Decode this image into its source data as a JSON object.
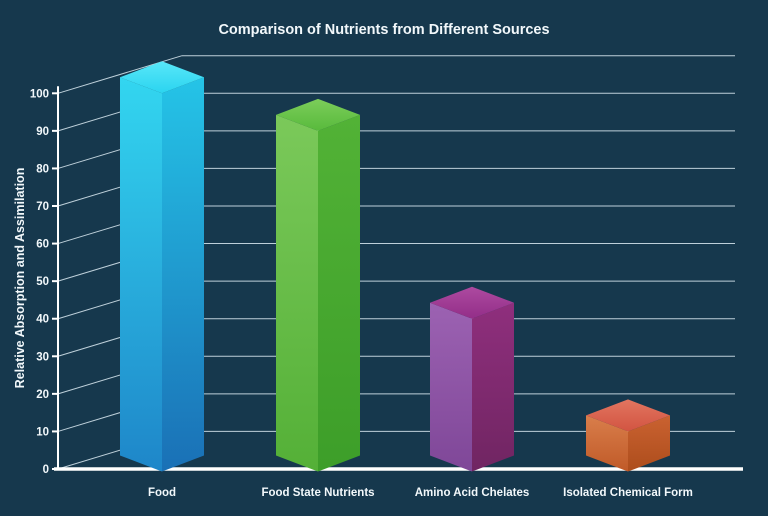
{
  "colors": {
    "background": "#16384d",
    "grid": "#dcebf3",
    "axis": "#ffffff",
    "text": "#f2f8fb"
  },
  "chart_data": {
    "type": "bar",
    "projection": "3d-oblique",
    "title": "Comparison of Nutrients from Different Sources",
    "xlabel": "",
    "ylabel": "Relative Absorption and Assimilation",
    "categories": [
      "Food",
      "Food State Nutrients",
      "Amino Acid Chelates",
      "Isolated Chemical Form"
    ],
    "values": [
      100,
      90,
      40,
      10
    ],
    "ylim": [
      0,
      100
    ],
    "ytick_step": 10,
    "ytick_labels": [
      "0",
      "10",
      "20",
      "30",
      "40",
      "50",
      "60",
      "70",
      "80",
      "90",
      "100"
    ],
    "grid": true,
    "legend": false,
    "bar_colors": [
      {
        "name": "cyan-blue",
        "top1": "#58e7f8",
        "top2": "#2bd4f0",
        "left1": "#33d6f0",
        "left2": "#1e86c9",
        "right1": "#25c4e7",
        "right2": "#1a70b6"
      },
      {
        "name": "green",
        "top1": "#7ccd5a",
        "top2": "#58ba3c",
        "left1": "#7bc95a",
        "left2": "#54b037",
        "right1": "#52b236",
        "right2": "#3d9e29"
      },
      {
        "name": "purple-magenta",
        "top1": "#ad4aa0",
        "top2": "#932e88",
        "left1": "#9c62b2",
        "left2": "#7f4798",
        "right1": "#8f2f7d",
        "right2": "#702562"
      },
      {
        "name": "orange-red",
        "top1": "#e27560",
        "top2": "#d25441",
        "left1": "#d97e4b",
        "left2": "#c05a28",
        "right1": "#ca6231",
        "right2": "#ad4d1c"
      }
    ]
  }
}
